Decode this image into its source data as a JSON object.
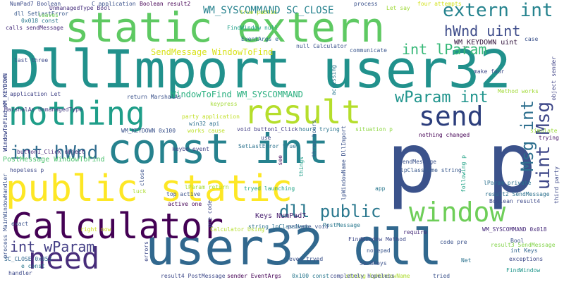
{
  "words": [
    {
      "text": "p p",
      "color": "#3b528b"
    },
    {
      "text": "DllImport user32",
      "color": "#21918c"
    },
    {
      "text": "static extern",
      "color": "#5ec962"
    },
    {
      "text": "const int",
      "color": "#26828e"
    },
    {
      "text": "public static",
      "color": "#fde725"
    },
    {
      "text": "user32 dll",
      "color": "#31688e"
    },
    {
      "text": "Calculator",
      "color": "#440154"
    },
    {
      "text": "nothing",
      "color": "#1f9e89"
    },
    {
      "text": "result",
      "color": "#b5de2b"
    },
    {
      "text": "need",
      "color": "#472c7a"
    },
    {
      "text": "send",
      "color": "#2c3e7c"
    },
    {
      "text": "window",
      "color": "#6ece58"
    },
    {
      "text": "extern int",
      "color": "#25838e"
    },
    {
      "text": "dll public",
      "color": "#2a788e"
    },
    {
      "text": "int hWnd",
      "color": "#2f6c8e"
    },
    {
      "text": "hWnd uint",
      "color": "#3e4c8a"
    },
    {
      "text": "int lParam",
      "color": "#37b878"
    },
    {
      "text": "wParam int",
      "color": "#1f948c"
    },
    {
      "text": "int wParam",
      "color": "#433e85"
    },
    {
      "text": "Msg int",
      "color": "#2e6f8e"
    },
    {
      "text": "uint Msg",
      "color": "#3f4889"
    },
    {
      "text": "WM_SYSCOMMAND SC_CLOSE",
      "color": "#26828e"
    },
    {
      "text": "SendMessage WindowToFind",
      "color": "#d8e219"
    },
    {
      "text": "WindowToFind WM_SYSCOMMAND",
      "color": "#29af7f"
    },
    {
      "text": "PostMessage WindowToFind",
      "color": "#4ac16d"
    },
    {
      "text": "WM_KEYDOWN uint",
      "color": "#30123b"
    },
    {
      "text": "Keys NumPad7",
      "color": "#481f70"
    },
    {
      "text": "string lpClassName",
      "color": "#2c718e"
    },
    {
      "text": "return MarshalAs",
      "color": "#3b528b"
    },
    {
      "text": "party application",
      "color": "#c0df25"
    },
    {
      "text": "win32 api",
      "color": "#2d708e"
    },
    {
      "text": "keypress",
      "color": "#a5db36"
    },
    {
      "text": "WindowToFind WM_KEYDOWN",
      "color": "#3e4989"
    },
    {
      "text": "WM_KEYDOWN 0x100",
      "color": "#3b528b"
    },
    {
      "text": "button1_Click object",
      "color": "#482878"
    },
    {
      "text": "keybd_event",
      "color": "#414487"
    },
    {
      "text": "hopeless p",
      "color": "#3e4a89"
    },
    {
      "text": "MarshalAs UnmanagedType",
      "color": "#443a83"
    },
    {
      "text": "application Let",
      "color": "#414487"
    },
    {
      "text": "last three",
      "color": "#3e4a89"
    },
    {
      "text": "calls sendMessage",
      "color": "#472d7b"
    },
    {
      "text": "0x018 const",
      "color": "#2a788e"
    },
    {
      "text": "dll SetLastError",
      "color": "#38598c"
    },
    {
      "text": "C application",
      "color": "#3b528b"
    },
    {
      "text": "Boolean result2",
      "color": "#440154"
    },
    {
      "text": "NumPad7 Boolean",
      "color": "#3d4d8a"
    },
    {
      "text": "UnmanagedType Bool",
      "color": "#472f7d"
    },
    {
      "text": "true public",
      "color": "#b8de29"
    },
    {
      "text": "FindWindow null",
      "color": "#1fa088"
    },
    {
      "text": "process",
      "color": "#3b528b"
    },
    {
      "text": "Let say",
      "color": "#a0da39"
    },
    {
      "text": "four attempts",
      "color": "#d2e21b"
    },
    {
      "text": "EventArgs e",
      "color": "#31688e"
    },
    {
      "text": "null Calculator",
      "color": "#3b528b"
    },
    {
      "text": "communicate",
      "color": "#39568c"
    },
    {
      "text": "accessing",
      "color": "#2a788e"
    },
    {
      "text": "case",
      "color": "#3b528b"
    },
    {
      "text": "make four",
      "color": "#3e4989"
    },
    {
      "text": "object sender",
      "color": "#414487"
    },
    {
      "text": "Method works",
      "color": "#a2da37"
    },
    {
      "text": "hours trying",
      "color": "#2b748e"
    },
    {
      "text": "situation p",
      "color": "#8fd744"
    },
    {
      "text": "nothing changed",
      "color": "#440154"
    },
    {
      "text": "void button1_Click",
      "color": "#433e85"
    },
    {
      "text": "works cause",
      "color": "#bddf26"
    },
    {
      "text": "SetLastError true",
      "color": "#2c728e"
    },
    {
      "text": "use",
      "color": "#3e4a89"
    },
    {
      "text": "see",
      "color": "#440154"
    },
    {
      "text": "three hours",
      "color": "#355f8d"
    },
    {
      "text": "lpWindowName DllImport",
      "color": "#3b528b"
    },
    {
      "text": "things",
      "color": "#1f9e89"
    },
    {
      "text": "following p",
      "color": "#20a386"
    },
    {
      "text": "lParam private",
      "color": "#2c728e"
    },
    {
      "text": "third party",
      "color": "#3e4a89"
    },
    {
      "text": "simulate",
      "color": "#9bd93c"
    },
    {
      "text": "trying",
      "color": "#481668"
    },
    {
      "text": "SendMessage",
      "color": "#3b528b"
    },
    {
      "text": "lpClassName string",
      "color": "#38588c"
    },
    {
      "text": "result2 SendMessage",
      "color": "#2d718e"
    },
    {
      "text": "Boolean result4",
      "color": "#3e4a89"
    },
    {
      "text": "WM_SYSCOMMAND 0x018",
      "color": "#472a7a"
    },
    {
      "text": "Bool",
      "color": "#3b528b"
    },
    {
      "text": "result3 SendMessage",
      "color": "#84d44b"
    },
    {
      "text": "int Keys",
      "color": "#31668e"
    },
    {
      "text": "exceptions",
      "color": "#3e4a89"
    },
    {
      "text": "Net",
      "color": "#2c728e"
    },
    {
      "text": "FindWindow",
      "color": "#1f968b"
    },
    {
      "text": "string lpWindowName",
      "color": "#addc30"
    },
    {
      "text": "tried",
      "color": "#3b528b"
    },
    {
      "text": "app",
      "color": "#2a788e"
    },
    {
      "text": "require",
      "color": "#472c7a"
    },
    {
      "text": "code pre",
      "color": "#3b528b"
    },
    {
      "text": "SendKeys",
      "color": "#3b528b"
    },
    {
      "text": "completely hopeless",
      "color": "#3e4a89"
    },
    {
      "text": "0x100 const",
      "color": "#2a788e"
    },
    {
      "text": "sender EventArgs",
      "color": "#440154"
    },
    {
      "text": "result4 PostMessage",
      "color": "#3e4989"
    },
    {
      "text": "even tryed",
      "color": "#3b528b"
    },
    {
      "text": "notepad",
      "color": "#39568c"
    },
    {
      "text": "FindWindow Method",
      "color": "#3e4989"
    },
    {
      "text": "PostMessage",
      "color": "#2a788e"
    },
    {
      "text": "private void",
      "color": "#3b528b"
    },
    {
      "text": "Calculator Using",
      "color": "#b5de2b"
    },
    {
      "text": "pre code",
      "color": "#3e4a89"
    },
    {
      "text": "tryed launching",
      "color": "#20a486"
    },
    {
      "text": "lParam return",
      "color": "#a8db34"
    },
    {
      "text": "active one",
      "color": "#440154"
    },
    {
      "text": "top active",
      "color": "#3b528b"
    },
    {
      "text": "close",
      "color": "#3b528b"
    },
    {
      "text": "luck",
      "color": "#addc30"
    },
    {
      "text": "right now",
      "color": "#d0e11c"
    },
    {
      "text": "exact",
      "color": "#3b528b"
    },
    {
      "text": "errors",
      "color": "#3e4a89"
    },
    {
      "text": "SC_CLOSE 0x053",
      "color": "#31688e"
    },
    {
      "text": "handler",
      "color": "#3e4a89"
    },
    {
      "text": "e const",
      "color": "#2a788e"
    },
    {
      "text": "process MainWindowHandler",
      "color": "#3b528b"
    },
    {
      "text": "WindowToFind WM_KEYDOWN",
      "color": "#3e4989"
    },
    {
      "text": "leaves",
      "color": "#6ece58"
    },
    {
      "text": "WM_KEYDOWN",
      "color": "#3b528b"
    }
  ]
}
